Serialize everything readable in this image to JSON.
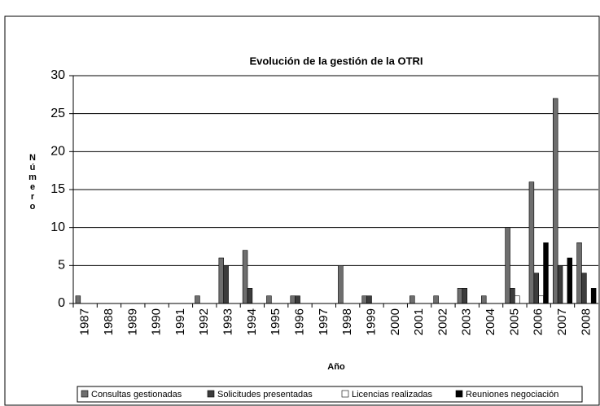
{
  "chart_data": {
    "type": "bar",
    "title": "Evolución de la gestión de la OTRI",
    "x_label": "Año",
    "y_label": "Número",
    "categories": [
      "1987",
      "1988",
      "1989",
      "1990",
      "1991",
      "1992",
      "1993",
      "1994",
      "1995",
      "1996",
      "1997",
      "1998",
      "1999",
      "2000",
      "2001",
      "2002",
      "2003",
      "2004",
      "2005",
      "2006",
      "2007",
      "2008"
    ],
    "series": [
      {
        "name": "Consultas gestionadas",
        "color": "#6e6e6e",
        "values": [
          1,
          0,
          0,
          0,
          0,
          1,
          6,
          7,
          1,
          1,
          0,
          5,
          1,
          0,
          1,
          1,
          2,
          1,
          10,
          16,
          27,
          8
        ]
      },
      {
        "name": "Solicitudes presentadas",
        "color": "#3c3c3c",
        "values": [
          0,
          0,
          0,
          0,
          0,
          0,
          5,
          2,
          0,
          1,
          0,
          0,
          1,
          0,
          0,
          0,
          2,
          0,
          2,
          4,
          5,
          4
        ]
      },
      {
        "name": "Licencias realizadas",
        "color": "#ffffff",
        "values": [
          0,
          0,
          0,
          0,
          0,
          0,
          0,
          0,
          0,
          0,
          0,
          0,
          0,
          0,
          0,
          0,
          0,
          0,
          1,
          1,
          0,
          0
        ]
      },
      {
        "name": "Reuniones negociación",
        "color": "#000000",
        "values": [
          0,
          0,
          0,
          0,
          0,
          0,
          0,
          0,
          0,
          0,
          0,
          0,
          0,
          0,
          0,
          0,
          0,
          0,
          0,
          8,
          6,
          2
        ]
      }
    ],
    "ylim": [
      0,
      30
    ],
    "yticks": [
      0,
      5,
      10,
      15,
      20,
      25,
      30
    ],
    "grid": true
  }
}
